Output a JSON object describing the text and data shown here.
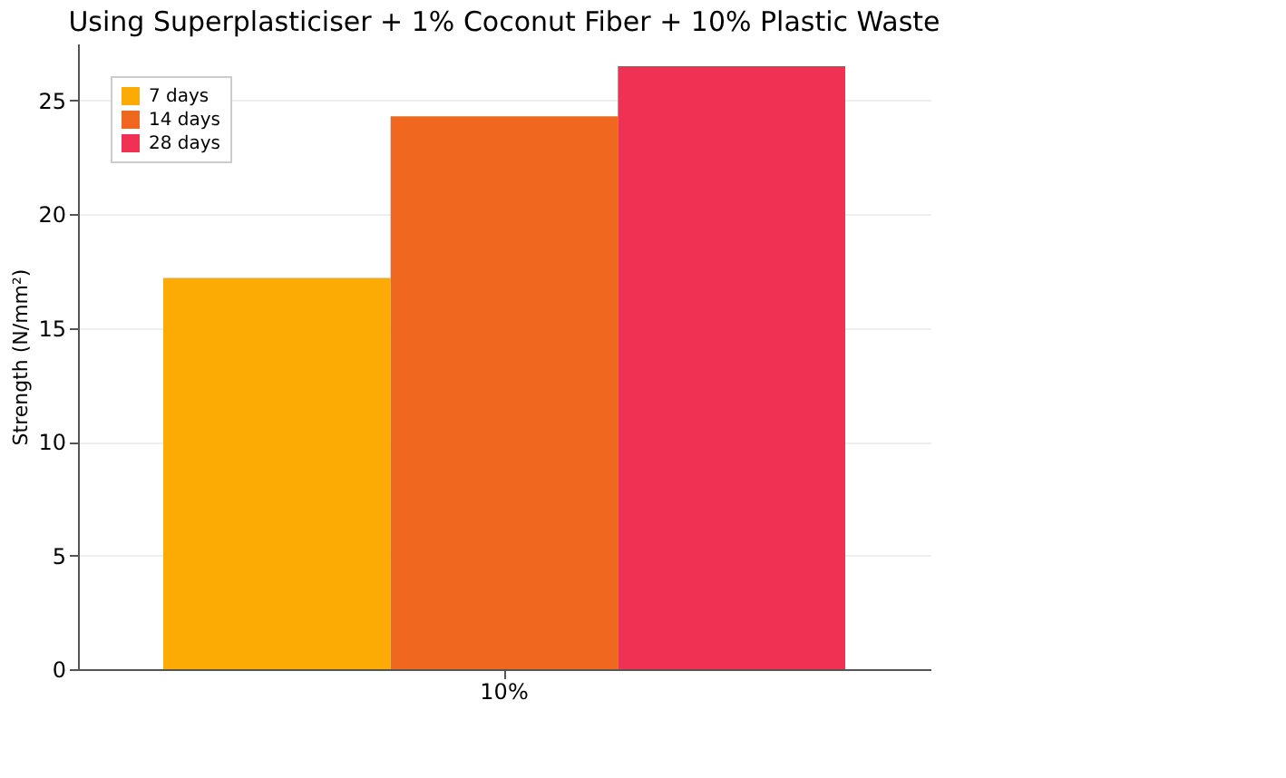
{
  "chart_data": {
    "type": "bar",
    "title": "Using Superplasticiser + 1% Coconut Fiber + 10% Plastic Waste",
    "ylabel": "Strength (N/mm²)",
    "categories": [
      "10%"
    ],
    "series": [
      {
        "name": "7 days",
        "color": "#fbab04",
        "values": [
          17.2
        ]
      },
      {
        "name": "14 days",
        "color": "#f0671f",
        "values": [
          24.3
        ]
      },
      {
        "name": "28 days",
        "color": "#f13154",
        "values": [
          26.5
        ]
      }
    ],
    "ylim": [
      0,
      27.5
    ],
    "yticks": [
      0,
      5,
      10,
      15,
      20,
      25
    ],
    "grid": "y",
    "legend": "top left"
  }
}
